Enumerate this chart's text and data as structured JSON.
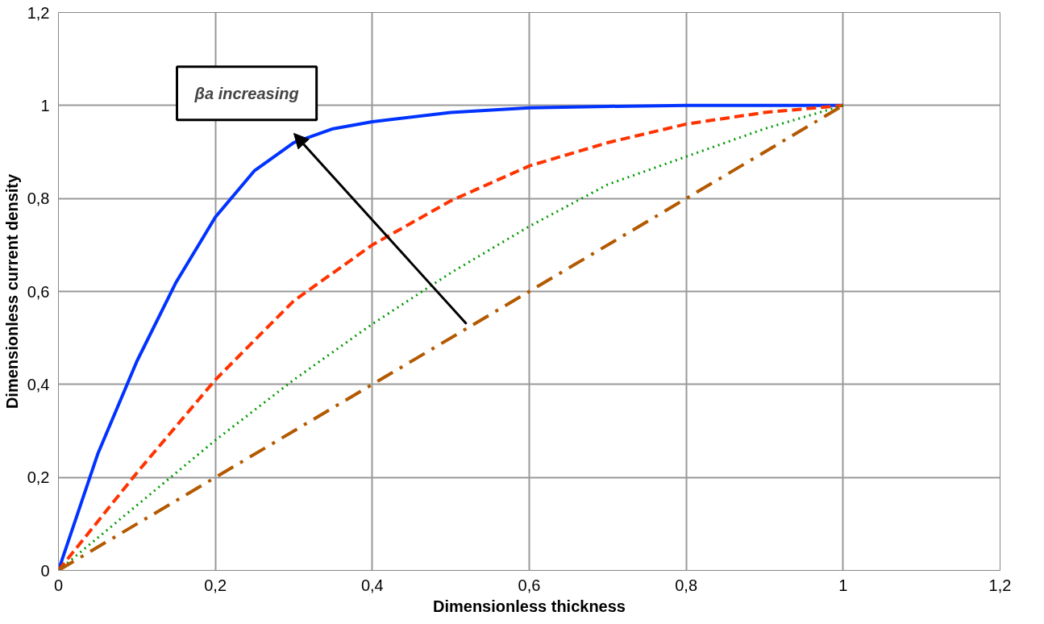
{
  "chart_data": {
    "type": "line",
    "xlabel": "Dimensionless thickness",
    "ylabel": "Dimensionless current density",
    "annotations": [
      "βa increasing"
    ],
    "xlim": [
      0,
      1.2
    ],
    "ylim": [
      0,
      1.2
    ],
    "xticks": [
      0,
      {
        "value": 0.2,
        "label": "0,2"
      },
      {
        "value": 0.4,
        "label": "0,4"
      },
      {
        "value": 0.6,
        "label": "0,6"
      },
      {
        "value": 0.8,
        "label": "0,8"
      },
      1,
      {
        "value": 1.2,
        "label": "1,2"
      }
    ],
    "yticks": [
      0,
      {
        "value": 0.2,
        "label": "0,2"
      },
      {
        "value": 0.4,
        "label": "0,4"
      },
      {
        "value": 0.6,
        "label": "0,6"
      },
      {
        "value": 0.8,
        "label": "0,8"
      },
      1,
      {
        "value": 1.2,
        "label": "1,2"
      }
    ],
    "grid": true,
    "marker": "none",
    "series": [
      {
        "color": "#0033ff",
        "line_style": "solid",
        "x": [
          0,
          0.05,
          0.1,
          0.15,
          0.2,
          0.25,
          0.3,
          0.35,
          0.4,
          0.5,
          0.6,
          0.7,
          0.8,
          0.9,
          1
        ],
        "values": [
          0,
          0.25,
          0.45,
          0.62,
          0.76,
          0.86,
          0.92,
          0.95,
          0.965,
          0.985,
          0.995,
          0.998,
          1,
          1,
          1
        ]
      },
      {
        "color": "#ff3300",
        "line_style": "dashed",
        "x": [
          0,
          0.1,
          0.2,
          0.3,
          0.4,
          0.5,
          0.6,
          0.7,
          0.8,
          0.9,
          1
        ],
        "values": [
          0,
          0.21,
          0.41,
          0.58,
          0.7,
          0.795,
          0.87,
          0.92,
          0.96,
          0.985,
          1
        ]
      },
      {
        "color": "#009900",
        "line_style": "dotted",
        "x": [
          0,
          0.1,
          0.2,
          0.3,
          0.4,
          0.5,
          0.6,
          0.7,
          0.8,
          0.9,
          1
        ],
        "values": [
          0,
          0.14,
          0.28,
          0.41,
          0.53,
          0.64,
          0.74,
          0.83,
          0.89,
          0.95,
          1
        ]
      },
      {
        "color": "#b35900",
        "line_style": "dashdot",
        "x": [
          0,
          0.2,
          0.4,
          0.6,
          0.8,
          1
        ],
        "values": [
          0,
          0.2,
          0.4,
          0.6,
          0.8,
          1
        ]
      }
    ]
  }
}
